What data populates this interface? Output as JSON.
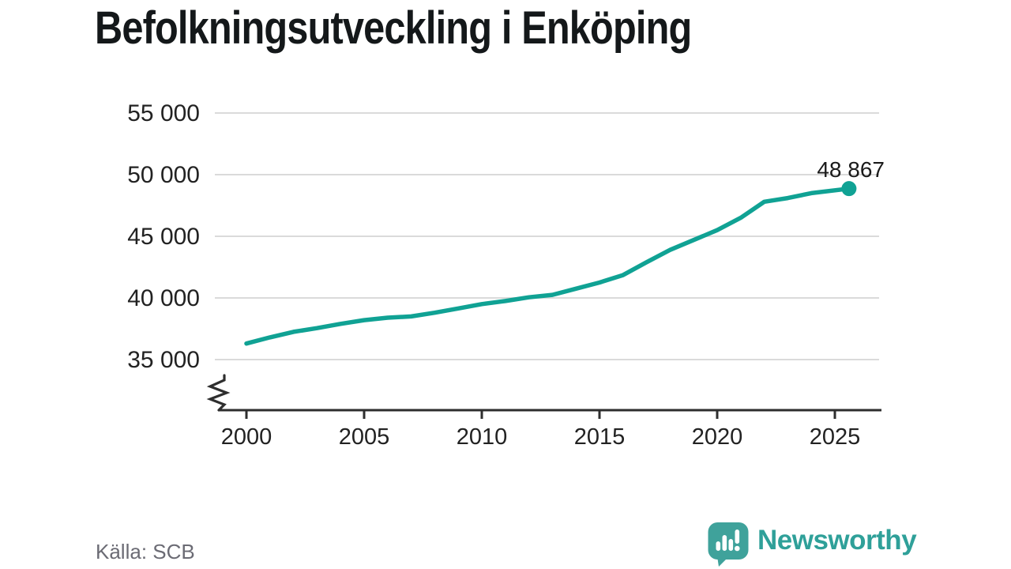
{
  "header": {
    "title": "Befolkningsutveckling i Enköping"
  },
  "footer": {
    "source": "Källa: SCB",
    "brand": "Newsworthy"
  },
  "colors": {
    "line": "#10a294",
    "marker": "#10a294",
    "brand_teal": "#3fa29b",
    "brand_text": "#2fa099",
    "grid": "#dadada",
    "axis": "#2e2e2e",
    "tick_text": "#222222",
    "annotation_text": "#1a1a1a",
    "muted_text": "#6b6b74",
    "title_text": "#14181a"
  },
  "chart_data": {
    "type": "line",
    "title": "Befolkningsutveckling i Enköping",
    "source": "Källa: SCB",
    "xlabel": "",
    "ylabel": "",
    "legend": "none",
    "grid": "horizontal",
    "axis_break": true,
    "ylim": [
      35000,
      55000
    ],
    "xlim": [
      2000,
      2025.6
    ],
    "x": [
      2000,
      2001,
      2002,
      2003,
      2004,
      2005,
      2006,
      2007,
      2008,
      2009,
      2010,
      2011,
      2012,
      2013,
      2014,
      2015,
      2016,
      2017,
      2018,
      2019,
      2020,
      2021,
      2022,
      2023,
      2024,
      2025.6
    ],
    "y": [
      36300,
      36800,
      37250,
      37550,
      37900,
      38200,
      38400,
      38500,
      38800,
      39150,
      39500,
      39750,
      40050,
      40250,
      40750,
      41250,
      41850,
      42900,
      43900,
      44700,
      45500,
      46500,
      47800,
      48100,
      48500,
      48867
    ],
    "end_value": 48867,
    "end_label": "48 867",
    "yticks": [
      {
        "value": 35000,
        "label": "35 000"
      },
      {
        "value": 40000,
        "label": "40 000"
      },
      {
        "value": 45000,
        "label": "45 000"
      },
      {
        "value": 50000,
        "label": "50 000"
      },
      {
        "value": 55000,
        "label": "55 000"
      }
    ],
    "xticks": [
      {
        "value": 2000,
        "label": "2000"
      },
      {
        "value": 2005,
        "label": "2005"
      },
      {
        "value": 2010,
        "label": "2010"
      },
      {
        "value": 2015,
        "label": "2015"
      },
      {
        "value": 2020,
        "label": "2020"
      },
      {
        "value": 2025,
        "label": "2025"
      }
    ]
  },
  "logo": {
    "icon": "speech-bubble-bar-chart-icon"
  }
}
